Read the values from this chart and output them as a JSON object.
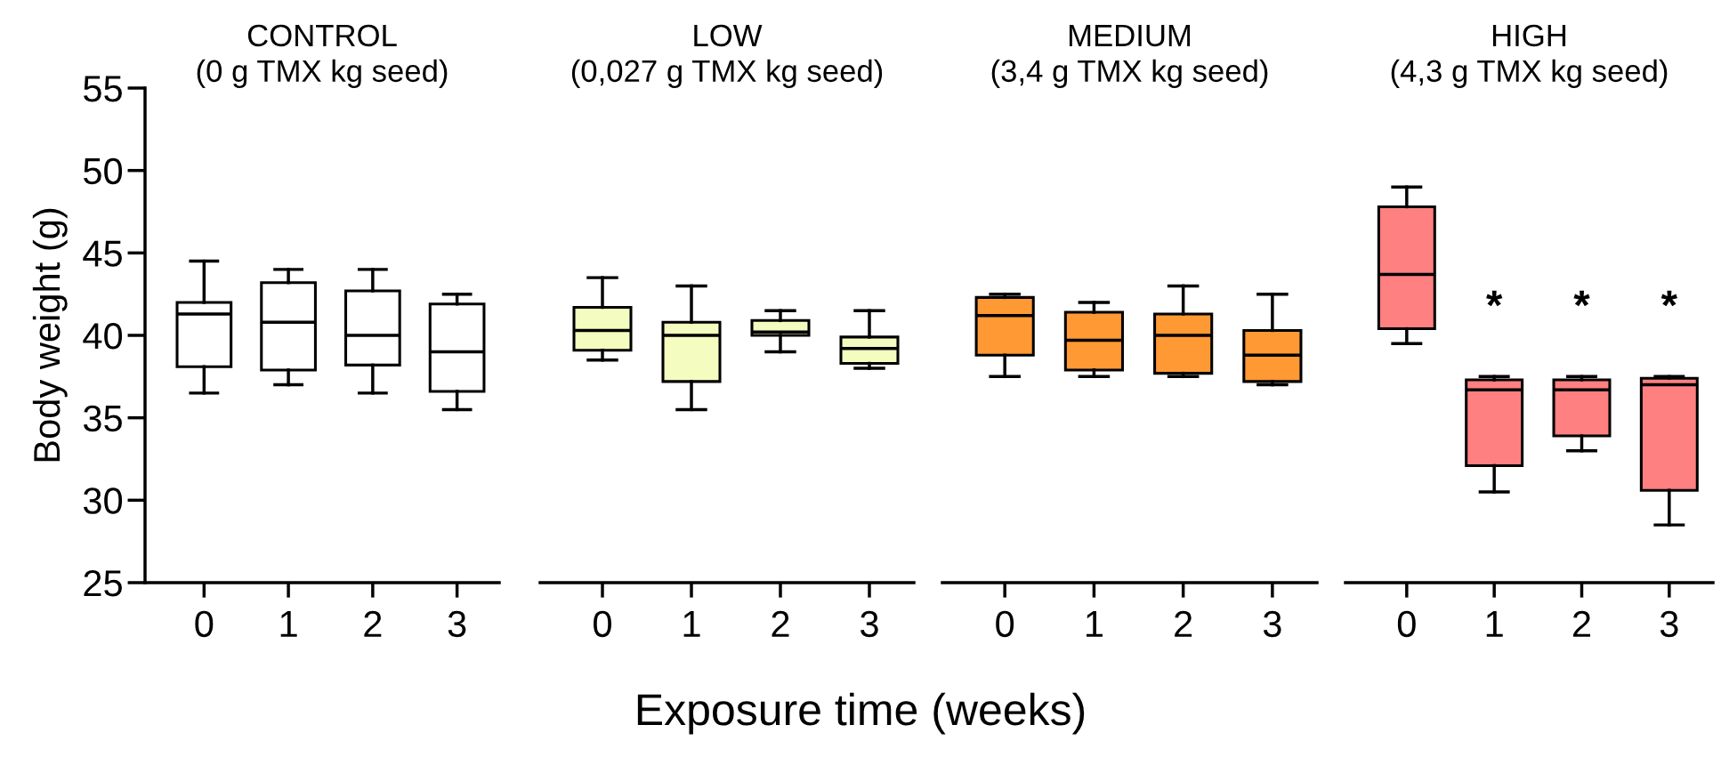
{
  "chart_data": [
    {
      "type": "box",
      "title": "CONTROL",
      "subtitle": "(0 g TMX kg seed)",
      "ylabel": "Body weight (g)",
      "xlabel": "Exposure time (weeks)",
      "categories": [
        "0",
        "1",
        "2",
        "3"
      ],
      "ylim": [
        25,
        55
      ],
      "yticks": [
        25,
        30,
        35,
        40,
        45,
        50,
        55
      ],
      "series": [
        {
          "color": "#ffffff",
          "boxes": [
            {
              "low": 36.5,
              "q1": 38.1,
              "median": 41.3,
              "q3": 42.0,
              "high": 44.5
            },
            {
              "low": 37.0,
              "q1": 37.9,
              "median": 40.8,
              "q3": 43.2,
              "high": 44.0
            },
            {
              "low": 36.5,
              "q1": 38.2,
              "median": 40.0,
              "q3": 42.7,
              "high": 44.0
            },
            {
              "low": 35.5,
              "q1": 36.6,
              "median": 39.0,
              "q3": 41.9,
              "high": 42.5
            }
          ]
        }
      ]
    },
    {
      "type": "box",
      "title": "LOW",
      "subtitle": "(0,027 g TMX kg seed)",
      "categories": [
        "0",
        "1",
        "2",
        "3"
      ],
      "ylim": [
        25,
        55
      ],
      "tick_labels": "x",
      "series": [
        {
          "color": "#f4fcc0",
          "boxes": [
            {
              "low": 38.5,
              "q1": 39.1,
              "median": 40.3,
              "q3": 41.7,
              "high": 43.5
            },
            {
              "low": 35.5,
              "q1": 37.2,
              "median": 40.0,
              "q3": 40.8,
              "high": 43.0
            },
            {
              "low": 39.0,
              "q1": 40.0,
              "median": 40.2,
              "q3": 40.9,
              "high": 41.5
            },
            {
              "low": 38.0,
              "q1": 38.3,
              "median": 39.2,
              "q3": 39.9,
              "high": 41.5
            }
          ]
        }
      ]
    },
    {
      "type": "box",
      "title": "MEDIUM",
      "subtitle": "(3,4 g TMX kg seed)",
      "categories": [
        "0",
        "1",
        "2",
        "3"
      ],
      "ylim": [
        25,
        55
      ],
      "tick_labels": "x",
      "series": [
        {
          "color": "#ff9933",
          "boxes": [
            {
              "low": 37.5,
              "q1": 38.8,
              "median": 41.2,
              "q3": 42.3,
              "high": 42.5
            },
            {
              "low": 37.5,
              "q1": 37.9,
              "median": 39.7,
              "q3": 41.4,
              "high": 42.0
            },
            {
              "low": 37.5,
              "q1": 37.7,
              "median": 40.0,
              "q3": 41.3,
              "high": 43.0
            },
            {
              "low": 37.0,
              "q1": 37.2,
              "median": 38.8,
              "q3": 40.3,
              "high": 42.5
            }
          ]
        }
      ]
    },
    {
      "type": "box",
      "title": "HIGH",
      "subtitle": "(4,3 g TMX kg seed)",
      "categories": [
        "0",
        "1",
        "2",
        "3"
      ],
      "ylim": [
        25,
        55
      ],
      "tick_labels": "x",
      "series": [
        {
          "color": "#ff8080",
          "boxes": [
            {
              "low": 39.5,
              "q1": 40.4,
              "median": 43.7,
              "q3": 47.8,
              "high": 49.0
            },
            {
              "low": 30.5,
              "q1": 32.1,
              "median": 36.7,
              "q3": 37.3,
              "high": 37.5
            },
            {
              "low": 33.0,
              "q1": 33.9,
              "median": 36.7,
              "q3": 37.3,
              "high": 37.5
            },
            {
              "low": 28.5,
              "q1": 30.6,
              "median": 37.0,
              "q3": 37.4,
              "high": 37.5
            }
          ]
        }
      ],
      "annotations": [
        "*",
        "*",
        "*"
      ]
    }
  ]
}
